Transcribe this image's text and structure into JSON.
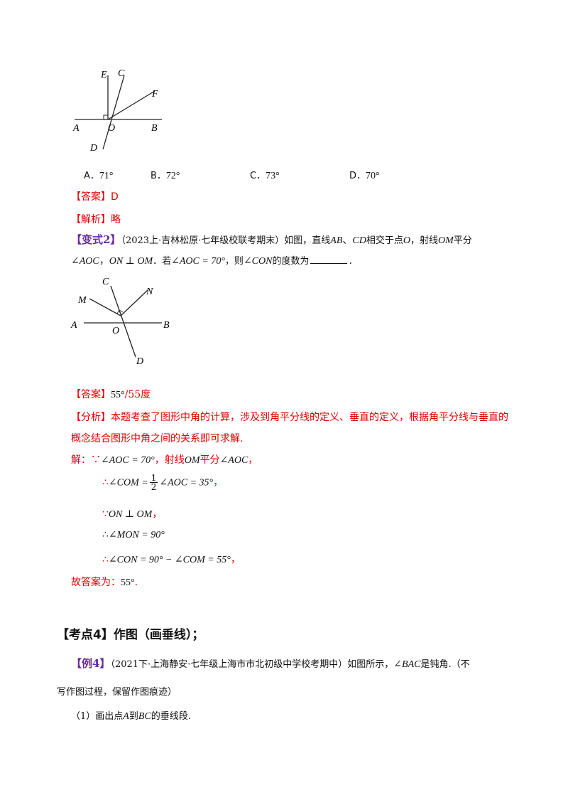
{
  "figure1": {
    "labels": [
      "E",
      "C",
      "F",
      "A",
      "O",
      "B",
      "D"
    ]
  },
  "choices": [
    {
      "letter": "A．",
      "value": "71°"
    },
    {
      "letter": "B．",
      "value": "72°"
    },
    {
      "letter": "C．",
      "value": "73°"
    },
    {
      "letter": "D．",
      "value": "70°"
    }
  ],
  "answer1": {
    "tag": "【答案】",
    "text": "D"
  },
  "analysis1": {
    "tag": "【解析】",
    "text": "略"
  },
  "variant2": {
    "tag": "【变式2】",
    "source": "（2023上·吉林松原·七年级校联考期末）如图，直线",
    "ab": "AB",
    "sep1": "、",
    "cd": "CD",
    "mid": "相交于点",
    "o": "O",
    "ray": "，射线",
    "om": "OM",
    "bisect": "平分",
    "angle_aoc": "∠AOC",
    "comma": "，",
    "perp": "ON ⊥ OM",
    "if": "．若",
    "cond": "∠AOC = 70°",
    "then": "，则",
    "angle_con": "∠CON",
    "ask": "的度数为",
    "end": "."
  },
  "figure2": {
    "labels": [
      "C",
      "N",
      "M",
      "A",
      "O",
      "B",
      "D"
    ]
  },
  "answer2": {
    "tag": "【答案】",
    "value": "55°",
    "alt": "/55度"
  },
  "analysis2": {
    "tag": "【分析】",
    "text1": "本题考查了图形中角的计算，涉及到角平分线的定义、垂直的定义，根据角平分线与垂直的",
    "text2": "概念结合图形中角之间的关系即可求解."
  },
  "solution": {
    "line1_pre": "解：∵",
    "line1_eq": "∠AOC = 70°",
    "line1_mid": "，射线",
    "line1_om": "OM",
    "line1_bis": "平分",
    "line1_ang": "∠AOC",
    "line1_end": "，",
    "line2_pre": "∴",
    "line2_lhs": "∠COM =",
    "line2_num": "1",
    "line2_den": "2",
    "line2_rhs": "∠AOC = 35°",
    "line2_end": "，",
    "line3_pre": "∵",
    "line3_eq": "ON ⊥ OM",
    "line3_end": "，",
    "line4_pre": "∴",
    "line4_eq": "∠MON = 90°",
    "line5_pre": "∴",
    "line5_eq": "∠CON = 90° − ∠COM = 55°",
    "line5_end": "，",
    "final_pre": "故答案为：",
    "final_val": "55°",
    "final_end": "."
  },
  "section": {
    "title": "【考点4】作图（画垂线）；"
  },
  "example4": {
    "tag": "【例4】",
    "source": "（2021下·上海静安·七年级上海市市北初级中学校考期中）如图所示，",
    "angle": "∠BAC",
    "text": "是钝角.（不",
    "text2": "写作图过程，保留作图痕迹）",
    "q1_pre": "（1）画出点",
    "q1_a": "A",
    "q1_mid": "到",
    "q1_bc": "BC",
    "q1_end": "的垂线段."
  },
  "colors": {
    "red": "#e00000",
    "purple": "#6a2a9c"
  }
}
